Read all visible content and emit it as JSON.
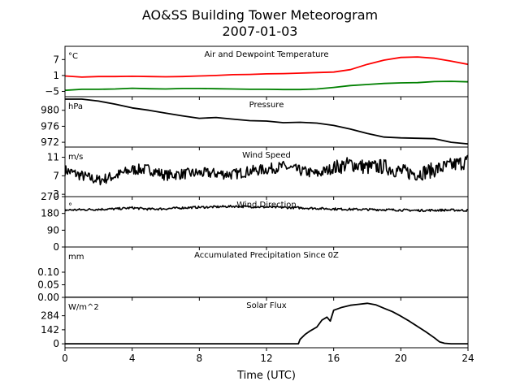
{
  "title": "AO&SS Building Tower Meteorogram",
  "subtitle": "2007-01-03",
  "chart_data": {
    "type": "line",
    "xlabel": "Time (UTC)",
    "xlim": [
      0,
      24
    ],
    "xticks": [
      0,
      4,
      8,
      12,
      16,
      20,
      24
    ],
    "panels": [
      {
        "id": "temperature",
        "title": "Air and Dewpoint Temperature",
        "unit": "°C",
        "ylim": [
          -7,
          12
        ],
        "yticks": [
          -5,
          1,
          7
        ],
        "ytick_labels": [
          "−5",
          "1",
          "7"
        ],
        "series": [
          {
            "color": "#ff0000",
            "x": [
              0,
              1,
              2,
              3,
              4,
              5,
              6,
              7,
              8,
              9,
              10,
              11,
              12,
              13,
              14,
              15,
              16,
              17,
              18,
              19,
              20,
              21,
              22,
              23,
              24
            ],
            "y": [
              0.8,
              0.4,
              0.6,
              0.6,
              0.7,
              0.6,
              0.5,
              0.6,
              0.8,
              1.0,
              1.3,
              1.4,
              1.6,
              1.7,
              1.9,
              2.1,
              2.3,
              3.2,
              5.2,
              6.8,
              7.8,
              8.0,
              7.5,
              6.4,
              5.2
            ]
          },
          {
            "color": "#008000",
            "x": [
              0,
              1,
              2,
              3,
              4,
              5,
              6,
              7,
              8,
              9,
              10,
              11,
              12,
              13,
              14,
              15,
              16,
              17,
              18,
              19,
              20,
              21,
              22,
              23,
              24
            ],
            "y": [
              -4.6,
              -4.2,
              -4.2,
              -4.1,
              -3.8,
              -4.0,
              -4.1,
              -3.9,
              -3.9,
              -4.0,
              -4.1,
              -4.2,
              -4.2,
              -4.3,
              -4.3,
              -4.1,
              -3.5,
              -2.8,
              -2.4,
              -2.0,
              -1.8,
              -1.7,
              -1.3,
              -1.2,
              -1.4
            ]
          }
        ]
      },
      {
        "id": "pressure",
        "title": "Pressure",
        "unit": "hPa",
        "ylim": [
          970.8,
          983.4
        ],
        "yticks": [
          972,
          976,
          980
        ],
        "ytick_labels": [
          "972",
          "976",
          "980"
        ],
        "series": [
          {
            "color": "#000000",
            "x": [
              0,
              1,
              2,
              3,
              4,
              5,
              6,
              7,
              8,
              9,
              10,
              11,
              12,
              13,
              14,
              15,
              16,
              17,
              18,
              19,
              20,
              21,
              22,
              23,
              24
            ],
            "y": [
              982.8,
              982.8,
              982.3,
              981.5,
              980.6,
              980.0,
              979.3,
              978.6,
              978.0,
              978.2,
              977.8,
              977.4,
              977.3,
              976.9,
              977.0,
              976.8,
              976.2,
              975.3,
              974.2,
              973.3,
              973.1,
              973.0,
              972.9,
              972.0,
              971.6
            ]
          }
        ]
      },
      {
        "id": "wind_speed",
        "title": "Wind Speed",
        "unit": "m/s",
        "ylim": [
          2.5,
          13.2
        ],
        "yticks": [
          3,
          7,
          11
        ],
        "ytick_labels": [
          "3",
          "7",
          "11"
        ],
        "noisy": true,
        "series": [
          {
            "color": "#000000",
            "x": [
              0,
              1,
              2,
              3,
              4,
              5,
              6,
              7,
              8,
              9,
              10,
              11,
              12,
              13,
              14,
              15,
              16,
              17,
              18,
              19,
              20,
              21,
              22,
              23,
              24
            ],
            "y": [
              8.2,
              7.0,
              6.0,
              7.0,
              8.3,
              8.4,
              7.1,
              7.4,
              7.6,
              7.5,
              7.3,
              8.0,
              8.4,
              9.0,
              8.1,
              7.4,
              8.7,
              9.6,
              8.8,
              9.0,
              7.9,
              7.5,
              8.3,
              9.2,
              10.2
            ]
          }
        ]
      },
      {
        "id": "wind_direction",
        "title": "Wind Direction",
        "unit": "°",
        "ylim": [
          0,
          270
        ],
        "yticks": [
          0,
          90,
          180,
          270
        ],
        "ytick_labels": [
          "0",
          "90",
          "180",
          "270"
        ],
        "noisy": true,
        "series": [
          {
            "color": "#000000",
            "x": [
              0,
              1,
              2,
              3,
              4,
              5,
              6,
              7,
              8,
              9,
              10,
              11,
              12,
              13,
              14,
              15,
              16,
              17,
              18,
              19,
              20,
              21,
              22,
              23,
              24
            ],
            "y": [
              198,
              200,
              202,
              204,
              210,
              203,
              205,
              210,
              213,
              215,
              218,
              216,
              214,
              212,
              210,
              207,
              204,
              202,
              201,
              200,
              198,
              196,
              197,
              198,
              196
            ]
          }
        ]
      },
      {
        "id": "precipitation",
        "title": "Accumulated Precipitation Since 0Z",
        "unit": "mm",
        "ylim": [
          0,
          0.2
        ],
        "yticks": [
          0.0,
          0.05,
          0.1
        ],
        "ytick_labels": [
          "0.00",
          "0.05",
          "0.10"
        ],
        "series": [
          {
            "color": "#000000",
            "x": [
              0,
              24
            ],
            "y": [
              0.0,
              0.0
            ]
          }
        ]
      },
      {
        "id": "solar_flux",
        "title": "Solar Flux",
        "unit": "W/m^2",
        "ylim": [
          -40,
          470
        ],
        "yticks": [
          0,
          142,
          284
        ],
        "ytick_labels": [
          "0",
          "142",
          "284"
        ],
        "series": [
          {
            "color": "#000000",
            "x": [
              0,
              13.9,
              14.0,
              14.3,
              14.6,
              15.0,
              15.3,
              15.6,
              15.8,
              16.0,
              16.5,
              17.0,
              17.5,
              18.0,
              18.5,
              19.0,
              19.5,
              20.0,
              20.5,
              21.0,
              21.5,
              22.0,
              22.3,
              22.6,
              23.0,
              24.0
            ],
            "y": [
              0,
              0,
              45,
              95,
              130,
              170,
              240,
              270,
              230,
              340,
              370,
              390,
              400,
              410,
              395,
              360,
              325,
              280,
              230,
              175,
              120,
              60,
              20,
              5,
              0,
              0
            ]
          }
        ]
      }
    ]
  }
}
